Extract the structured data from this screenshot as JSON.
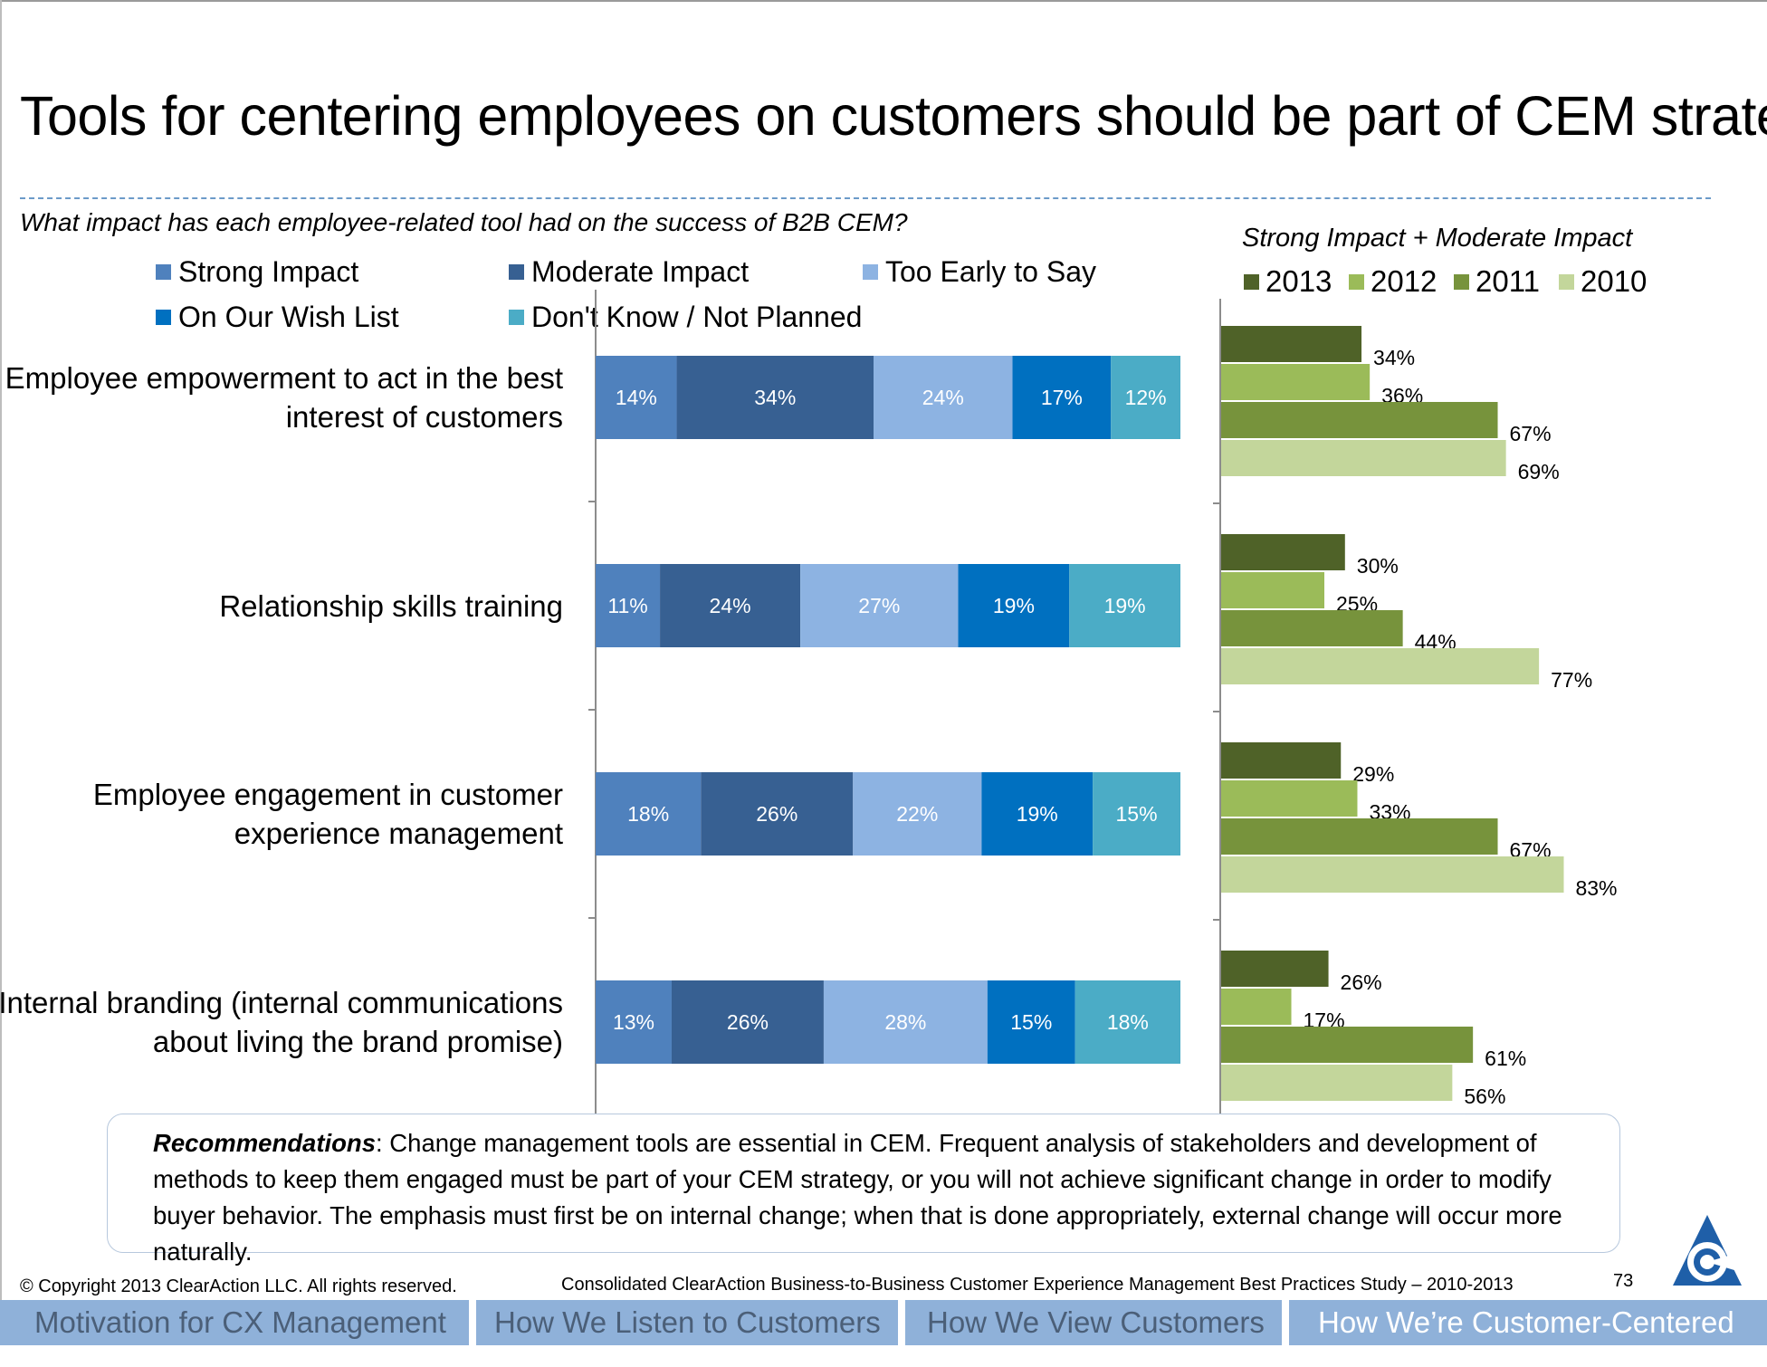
{
  "title": "Tools for centering employees on customers should be part of CEM strategy",
  "question": "What impact has each employee-related tool had on the success of B2B CEM?",
  "colors": {
    "strong": "#4f81bd",
    "moderate": "#376092",
    "early": "#8db3e2",
    "wish": "#0070c0",
    "dontknow": "#4bacc6",
    "y2013": "#4f6228",
    "y2012": "#9bbb59",
    "y2011": "#77933c",
    "y2010": "#c3d69b"
  },
  "legend_left": [
    "Strong Impact",
    "Moderate Impact",
    "Too Early to Say",
    "On Our Wish List",
    "Don't Know / Not Planned"
  ],
  "right_title": "Strong Impact + Moderate Impact",
  "legend_right": [
    "2013",
    "2012",
    "2011",
    "2010"
  ],
  "chart_data": [
    {
      "type": "bar",
      "orientation": "horizontal",
      "stacked": true,
      "categories": [
        "Employee empowerment to act in the best interest of customers",
        "Relationship skills training",
        "Employee engagement in customer experience management",
        "Internal branding (internal communications about living the brand promise)"
      ],
      "series": [
        {
          "name": "Strong Impact",
          "values": [
            14,
            11,
            18,
            13
          ]
        },
        {
          "name": "Moderate Impact",
          "values": [
            34,
            24,
            26,
            26
          ]
        },
        {
          "name": "Too Early to Say",
          "values": [
            24,
            27,
            22,
            28
          ]
        },
        {
          "name": "On Our Wish List",
          "values": [
            17,
            19,
            19,
            15
          ]
        },
        {
          "name": "Don't Know / Not Planned",
          "values": [
            12,
            19,
            15,
            18
          ]
        }
      ],
      "data_labels": [
        [
          "14%",
          "34%",
          "24%",
          "17%",
          "12%"
        ],
        [
          "11%",
          "24%",
          "27%",
          "19%",
          "19%"
        ],
        [
          "18%",
          "26%",
          "22%",
          "19%",
          "15%"
        ],
        [
          "13%",
          "26%",
          "28%",
          "15%",
          "18%"
        ]
      ],
      "unit": "%"
    },
    {
      "type": "bar",
      "orientation": "horizontal",
      "title": "Strong Impact + Moderate Impact",
      "categories": [
        "Employee empowerment to act in the best interest of customers",
        "Relationship skills training",
        "Employee engagement in customer experience management",
        "Internal branding (internal communications about living the brand promise)"
      ],
      "series": [
        {
          "name": "2013",
          "values": [
            34,
            30,
            29,
            26
          ]
        },
        {
          "name": "2012",
          "values": [
            36,
            25,
            33,
            17
          ]
        },
        {
          "name": "2011",
          "values": [
            67,
            44,
            67,
            61
          ]
        },
        {
          "name": "2010",
          "values": [
            69,
            77,
            83,
            56
          ]
        }
      ],
      "unit": "%",
      "legend": "top"
    }
  ],
  "category_lines": [
    [
      "Employee empowerment to act in the best",
      "interest of customers"
    ],
    [
      "Relationship skills training"
    ],
    [
      "Employee engagement in customer",
      "experience management"
    ],
    [
      "Internal branding (internal communications",
      "about living the brand promise)"
    ]
  ],
  "recommendations": {
    "label": "Recommendations",
    "text": ": Change management tools are essential in CEM.  Frequent analysis of stakeholders and development of methods to keep them engaged must be part of your CEM strategy, or you will not achieve significant change in order to modify buyer behavior.  The emphasis must first be on internal change; when that is done appropriately, external change will occur more naturally."
  },
  "footer": {
    "copyright": "© Copyright 2013 ClearAction LLC. All rights reserved.",
    "study": "Consolidated ClearAction Business-to-Business Customer Experience Management Best Practices Study – 2010-2013",
    "page": "73"
  },
  "nav_tabs": [
    "Motivation for CX Management",
    "How We Listen to Customers",
    "How We View Customers",
    "How We’re Customer-Centered"
  ]
}
